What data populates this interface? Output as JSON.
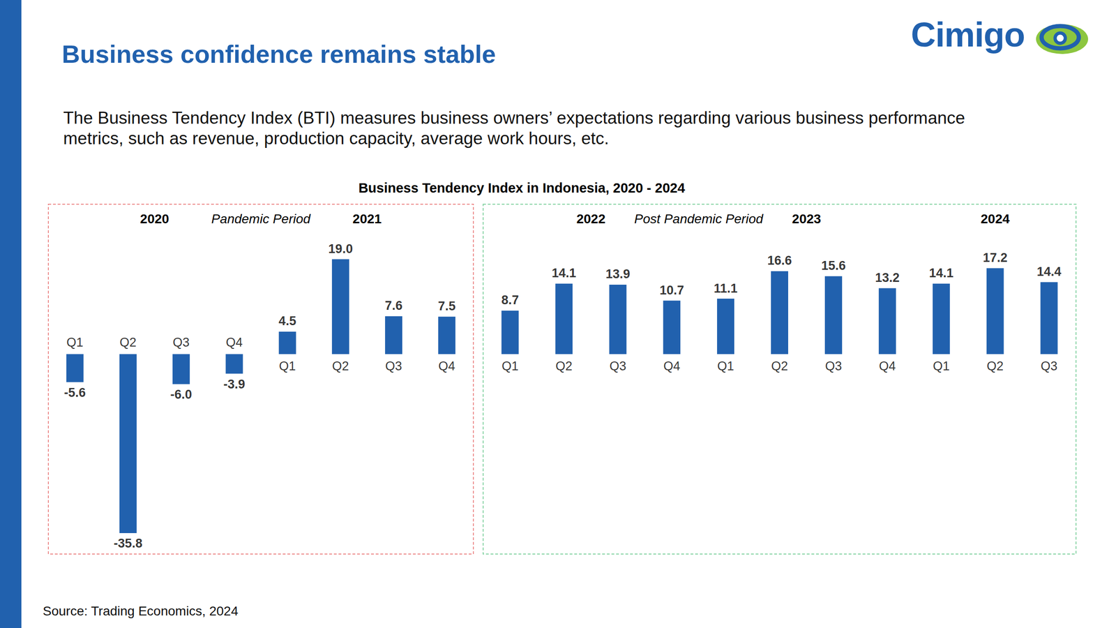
{
  "page": {
    "title": "Business confidence remains stable",
    "description": "The Business Tendency Index (BTI) measures business owners’ expectations regarding various business performance metrics, such as revenue, production capacity, average work hours, etc.",
    "source": "Source: Trading Economics, 2024",
    "logo": "Cimigo"
  },
  "chart_data": {
    "type": "bar",
    "title": "Business Tendency Index in Indonesia, 2020 - 2024",
    "color": "#2161ae",
    "ylim": [
      -40,
      30
    ],
    "data_labels": true,
    "tick_labels": "x",
    "panels": [
      {
        "label": "Pandemic Period",
        "categories": [
          "Q1",
          "Q2",
          "Q3",
          "Q4",
          "Q1",
          "Q2",
          "Q3",
          "Q4"
        ],
        "years": [
          "2020",
          "2020",
          "2020",
          "2020",
          "2021",
          "2021",
          "2021",
          "2021"
        ],
        "values": [
          -5.6,
          -35.8,
          -6.0,
          -3.9,
          4.5,
          19.0,
          7.6,
          7.5
        ],
        "value_labels": [
          "-5.6",
          "-35.8",
          "-6.0",
          "-3.9",
          "4.5",
          "19.0",
          "7.6",
          "7.5"
        ]
      },
      {
        "label": "Post Pandemic Period",
        "categories": [
          "Q1",
          "Q2",
          "Q3",
          "Q4",
          "Q1",
          "Q2",
          "Q3",
          "Q4",
          "Q1",
          "Q2",
          "Q3"
        ],
        "years": [
          "2022",
          "2022",
          "2022",
          "2022",
          "2023",
          "2023",
          "2023",
          "2023",
          "2024",
          "2024",
          "2024"
        ],
        "values": [
          8.7,
          14.1,
          13.9,
          10.7,
          11.1,
          16.6,
          15.6,
          13.2,
          14.1,
          17.2,
          14.4
        ],
        "value_labels": [
          "8.7",
          "14.1",
          "13.9",
          "10.7",
          "11.1",
          "16.6",
          "15.6",
          "13.2",
          "14.1",
          "17.2",
          "14.4"
        ]
      }
    ]
  }
}
